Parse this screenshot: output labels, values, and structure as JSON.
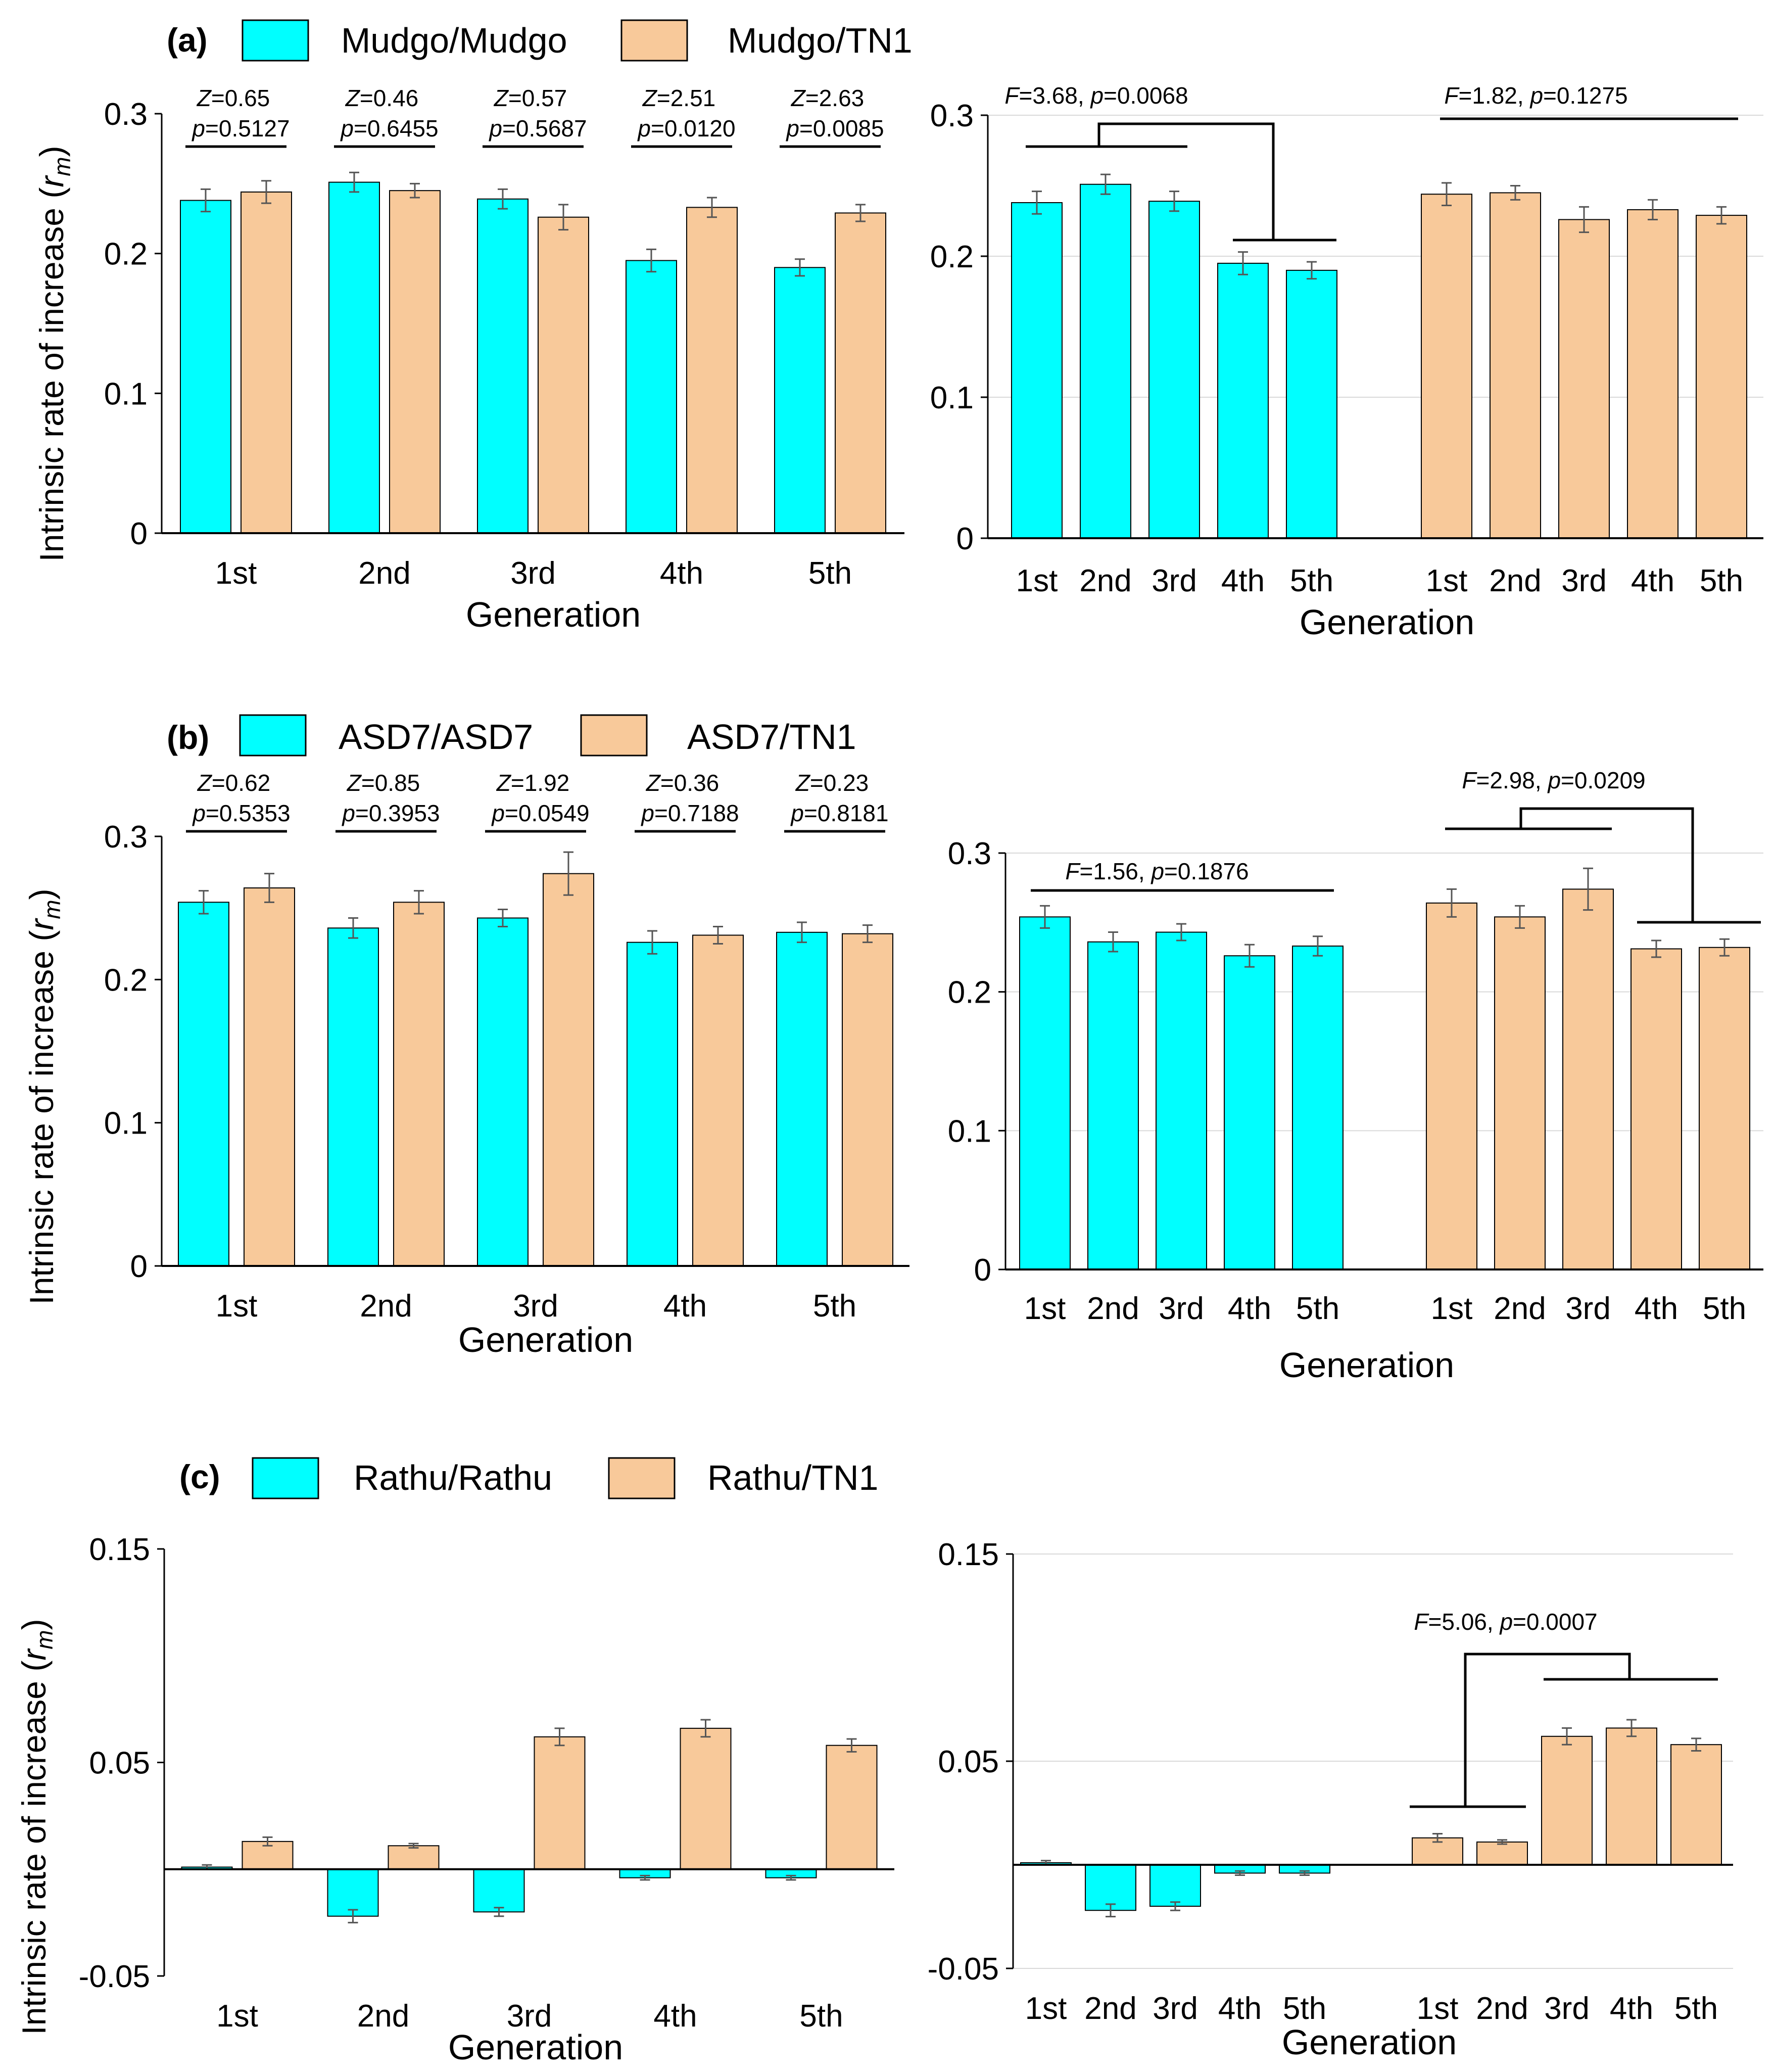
{
  "colors": {
    "teal": "#00FFFF",
    "tan": "#F8C99A",
    "axis": "#000000",
    "grid": "#D9D9D9",
    "err": "#555555"
  },
  "xlabel": "Generation",
  "ylabel_main": "Intrinsic rate of increase (",
  "ylabel_sym": "r",
  "ylabel_sub": "m",
  "ylabel_close": ")",
  "chart_data": [
    {
      "panel": "(a)",
      "type": "bar",
      "legend": [
        "Mudgo/Mudgo",
        "Mudgo/TN1"
      ],
      "categories": [
        "1st",
        "2nd",
        "3rd",
        "4th",
        "5th"
      ],
      "ylim": [
        0,
        0.3
      ],
      "yticks": [
        "0",
        "0.1",
        "0.2",
        "0.3"
      ],
      "series": [
        {
          "name": "Mudgo/Mudgo",
          "values": [
            0.238,
            0.251,
            0.239,
            0.195,
            0.19
          ],
          "errors": [
            0.008,
            0.007,
            0.007,
            0.008,
            0.006
          ]
        },
        {
          "name": "Mudgo/TN1",
          "values": [
            0.244,
            0.245,
            0.226,
            0.233,
            0.229
          ],
          "errors": [
            0.008,
            0.005,
            0.009,
            0.007,
            0.006
          ]
        }
      ],
      "tests": [
        {
          "stat": "Z",
          "stat_value": "=0.65",
          "p_value": "=0.5127"
        },
        {
          "stat": "Z",
          "stat_value": "=0.46",
          "p_value": "=0.6455"
        },
        {
          "stat": "Z",
          "stat_value": "=0.57",
          "p_value": "=0.5687"
        },
        {
          "stat": "Z",
          "stat_value": "=2.51",
          "p_value": "=0.0120"
        },
        {
          "stat": "Z",
          "stat_value": "=2.63",
          "p_value": "=0.0085"
        }
      ],
      "anova_left": {
        "stat": "F",
        "stat_value": "=3.68, ",
        "p_value": "=0.0068"
      },
      "anova_right": {
        "stat": "F",
        "stat_value": "=1.82, ",
        "p_value": "=0.1275"
      }
    },
    {
      "panel": "(b)",
      "type": "bar",
      "legend": [
        "ASD7/ASD7",
        "ASD7/TN1"
      ],
      "categories": [
        "1st",
        "2nd",
        "3rd",
        "4th",
        "5th"
      ],
      "ylim": [
        0,
        0.3
      ],
      "yticks": [
        "0",
        "0.1",
        "0.2",
        "0.3"
      ],
      "series": [
        {
          "name": "ASD7/ASD7",
          "values": [
            0.254,
            0.236,
            0.243,
            0.226,
            0.233
          ],
          "errors": [
            0.008,
            0.007,
            0.006,
            0.008,
            0.007
          ]
        },
        {
          "name": "ASD7/TN1",
          "values": [
            0.264,
            0.254,
            0.274,
            0.231,
            0.232
          ],
          "errors": [
            0.01,
            0.008,
            0.015,
            0.006,
            0.006
          ]
        }
      ],
      "tests": [
        {
          "stat": "Z",
          "stat_value": "=0.62",
          "p_value": "=0.5353"
        },
        {
          "stat": "Z",
          "stat_value": "=0.85",
          "p_value": "=0.3953"
        },
        {
          "stat": "Z",
          "stat_value": "=1.92",
          "p_value": "=0.0549"
        },
        {
          "stat": "Z",
          "stat_value": "=0.36",
          "p_value": "=0.7188"
        },
        {
          "stat": "Z",
          "stat_value": "=0.23",
          "p_value": "=0.8181"
        }
      ],
      "anova_left": {
        "stat": "F",
        "stat_value": "=1.56, ",
        "p_value": "=0.1876"
      },
      "anova_right": {
        "stat": "F",
        "stat_value": "=2.98, ",
        "p_value": "=0.0209"
      }
    },
    {
      "panel": "(c)",
      "type": "bar",
      "legend": [
        "Rathu/Rathu",
        "Rathu/TN1"
      ],
      "categories": [
        "1st",
        "2nd",
        "3rd",
        "4th",
        "5th"
      ],
      "ylim": [
        -0.05,
        0.15
      ],
      "yticks": [
        "-0.05",
        "0.05",
        "0.15"
      ],
      "series": [
        {
          "name": "Rathu/Rathu",
          "values": [
            0.001,
            -0.022,
            -0.02,
            -0.004,
            -0.004
          ],
          "errors": [
            0.001,
            0.003,
            0.002,
            0.001,
            0.001
          ]
        },
        {
          "name": "Rathu/TN1",
          "values": [
            0.013,
            0.011,
            0.062,
            0.066,
            0.058
          ],
          "errors": [
            0.002,
            0.001,
            0.004,
            0.004,
            0.003
          ]
        }
      ],
      "anova_right": {
        "stat": "F",
        "stat_value": "=5.06, ",
        "p_value": "=0.0007"
      }
    }
  ]
}
